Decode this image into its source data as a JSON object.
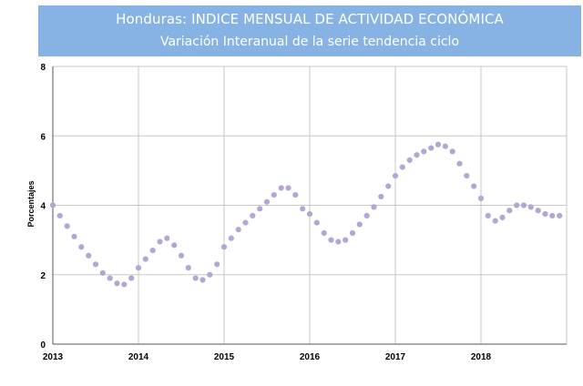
{
  "header": {
    "title": "Honduras: INDICE MENSUAL DE ACTIVIDAD ECONÓMICA",
    "subtitle": "Variación Interanual de la serie tendencia ciclo"
  },
  "chart_data": {
    "type": "scatter",
    "title": "Honduras: INDICE MENSUAL DE ACTIVIDAD ECONÓMICA",
    "subtitle": "Variación Interanual de la serie tendencia ciclo",
    "xlabel": "",
    "ylabel": "Porcentajes",
    "xlim": [
      2013,
      2019.0
    ],
    "ylim": [
      0,
      8
    ],
    "x_ticks": [
      "2013",
      "2014",
      "2015",
      "2016",
      "2017",
      "2018"
    ],
    "y_ticks": [
      "0",
      "2",
      "4",
      "6",
      "8"
    ],
    "grid": true,
    "marker_color": "#b4a6d4",
    "series": [
      {
        "x": [
          2013.0,
          2013.083,
          2013.167,
          2013.25,
          2013.333,
          2013.417,
          2013.5,
          2013.583,
          2013.667,
          2013.75,
          2013.833,
          2013.917,
          2014.0,
          2014.083,
          2014.167,
          2014.25,
          2014.333,
          2014.417,
          2014.5,
          2014.583,
          2014.667,
          2014.75,
          2014.833,
          2014.917,
          2015.0,
          2015.083,
          2015.167,
          2015.25,
          2015.333,
          2015.417,
          2015.5,
          2015.583,
          2015.667,
          2015.75,
          2015.833,
          2015.917,
          2016.0,
          2016.083,
          2016.167,
          2016.25,
          2016.333,
          2016.417,
          2016.5,
          2016.583,
          2016.667,
          2016.75,
          2016.833,
          2016.917,
          2017.0,
          2017.083,
          2017.167,
          2017.25,
          2017.333,
          2017.417,
          2017.5,
          2017.583,
          2017.667,
          2017.75,
          2017.833,
          2017.917,
          2018.0,
          2018.083,
          2018.167,
          2018.25,
          2018.333,
          2018.417,
          2018.5,
          2018.583,
          2018.667,
          2018.75,
          2018.833,
          2018.917
        ],
        "values": [
          4.0,
          3.7,
          3.4,
          3.1,
          2.8,
          2.55,
          2.3,
          2.05,
          1.9,
          1.75,
          1.72,
          1.9,
          2.2,
          2.45,
          2.7,
          2.95,
          3.05,
          2.85,
          2.55,
          2.2,
          1.9,
          1.85,
          2.0,
          2.3,
          2.8,
          3.05,
          3.3,
          3.5,
          3.7,
          3.9,
          4.1,
          4.3,
          4.5,
          4.5,
          4.3,
          3.9,
          3.75,
          3.5,
          3.2,
          3.0,
          2.95,
          3.0,
          3.2,
          3.45,
          3.7,
          3.95,
          4.25,
          4.55,
          4.85,
          5.1,
          5.3,
          5.45,
          5.55,
          5.65,
          5.75,
          5.7,
          5.55,
          5.2,
          4.85,
          4.55,
          4.2,
          3.7,
          3.55,
          3.65,
          3.85,
          4.0,
          4.0,
          3.95,
          3.85,
          3.75,
          3.7,
          3.7
        ]
      }
    ]
  }
}
